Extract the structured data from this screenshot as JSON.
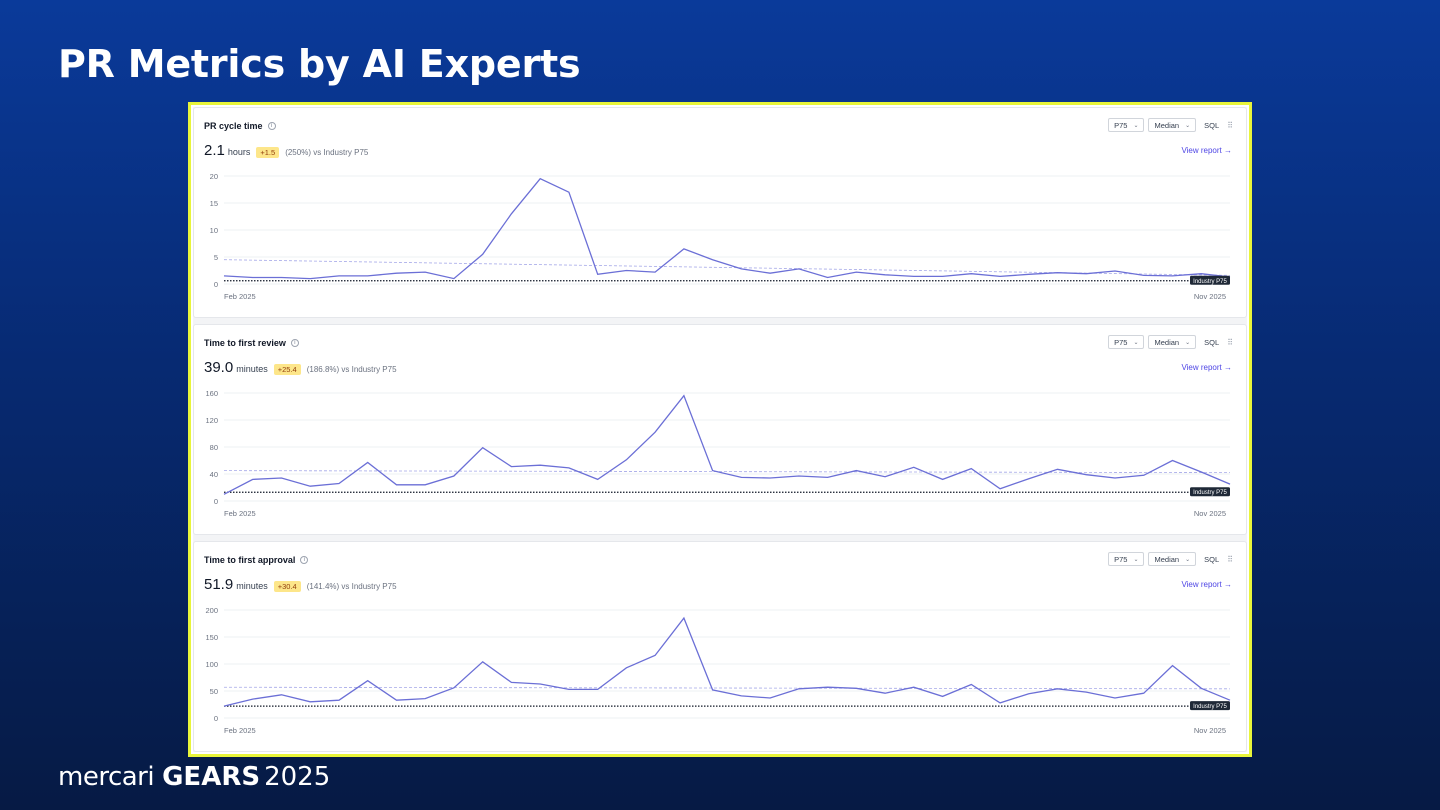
{
  "slide": {
    "title": "PR Metrics by AI Experts"
  },
  "footer": {
    "brand": "mercari",
    "event": "GEARS",
    "year": "2025"
  },
  "colors": {
    "accent_border": "#e8f53a",
    "series": "#6b6fd6",
    "baseline": "#111827",
    "median": "#a5a8e8"
  },
  "panels": [
    {
      "title": "PR cycle time",
      "controls": {
        "percentile": "P75",
        "stat": "Median",
        "sql": "SQL"
      },
      "value": "2.1",
      "unit": "hours",
      "delta": "+1.5",
      "comparison": "(250%) vs Industry P75",
      "view_report": "View report →",
      "date_start": "Feb 2025",
      "date_end": "Nov 2025",
      "industry_label": "Industry P75",
      "chart_data": {
        "type": "line",
        "ylim": [
          0,
          20
        ],
        "yticks": [
          "0",
          "5",
          "10",
          "15",
          "20"
        ],
        "values": [
          1.5,
          1.2,
          1.2,
          1.0,
          1.5,
          1.5,
          2.0,
          2.2,
          1.0,
          5.5,
          13.0,
          19.5,
          17.0,
          1.8,
          2.5,
          2.2,
          6.5,
          4.5,
          2.8,
          2.0,
          2.8,
          1.2,
          2.2,
          1.7,
          1.4,
          1.4,
          1.9,
          1.4,
          1.8,
          2.1,
          1.9,
          2.4,
          1.6,
          1.5,
          1.9,
          1.3
        ],
        "industry_p75": 0.6,
        "median_trend": [
          4.5,
          1.6
        ]
      }
    },
    {
      "title": "Time to first review",
      "controls": {
        "percentile": "P75",
        "stat": "Median",
        "sql": "SQL"
      },
      "value": "39.0",
      "unit": "minutes",
      "delta": "+25.4",
      "comparison": "(186.8%) vs Industry P75",
      "view_report": "View report →",
      "date_start": "Feb 2025",
      "date_end": "Nov 2025",
      "industry_label": "Industry P75",
      "chart_data": {
        "type": "line",
        "ylim": [
          0,
          160
        ],
        "yticks": [
          "0",
          "40",
          "80",
          "120",
          "160"
        ],
        "values": [
          10,
          32,
          34,
          22,
          26,
          57,
          24,
          24,
          37,
          79,
          51,
          53,
          49,
          32,
          61,
          102,
          156,
          45,
          35,
          34,
          37,
          35,
          45,
          36,
          50,
          32,
          48,
          18,
          33,
          47,
          39,
          34,
          38,
          60,
          43,
          25
        ],
        "industry_p75": 13,
        "median_trend": [
          45,
          42
        ]
      }
    },
    {
      "title": "Time to first approval",
      "controls": {
        "percentile": "P75",
        "stat": "Median",
        "sql": "SQL"
      },
      "value": "51.9",
      "unit": "minutes",
      "delta": "+30.4",
      "comparison": "(141.4%) vs Industry P75",
      "view_report": "View report →",
      "date_start": "Feb 2025",
      "date_end": "Nov 2025",
      "industry_label": "Industry P75",
      "chart_data": {
        "type": "line",
        "ylim": [
          0,
          200
        ],
        "yticks": [
          "0",
          "50",
          "100",
          "150",
          "200"
        ],
        "values": [
          22,
          35,
          43,
          30,
          33,
          69,
          33,
          36,
          56,
          104,
          66,
          63,
          53,
          53,
          93,
          116,
          185,
          52,
          41,
          37,
          54,
          57,
          55,
          46,
          57,
          40,
          62,
          28,
          45,
          54,
          48,
          37,
          46,
          97,
          55,
          33
        ],
        "industry_p75": 22,
        "median_trend": [
          57,
          54
        ]
      }
    }
  ]
}
